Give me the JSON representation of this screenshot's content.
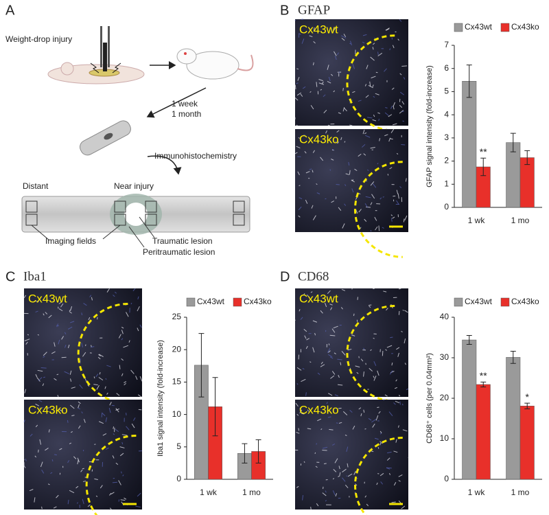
{
  "figure": {
    "A": {
      "label": "A",
      "injury": "Weight-drop injury",
      "time": [
        "1 week",
        "1 month"
      ],
      "method": "Immunohistochemistry",
      "distant": "Distant",
      "near": "Near injury",
      "fields": "Imaging fields",
      "traumatic": "Traumatic lesion",
      "peritraumatic": "Peritraumatic lesion"
    },
    "B": {
      "label": "B",
      "title": "GFAP",
      "images": [
        "Cx43wt",
        "Cx43ko"
      ]
    },
    "C": {
      "label": "C",
      "title": "Iba1",
      "images": [
        "Cx43wt",
        "Cx43ko"
      ]
    },
    "D": {
      "label": "D",
      "title": "CD68",
      "images": [
        "Cx43wt",
        "Cx43ko"
      ]
    }
  },
  "chart_data": [
    {
      "type": "bar",
      "ylabel": "GFAP signal intensity (fold-increase)",
      "categories": [
        "1 wk",
        "1 mo"
      ],
      "series": [
        {
          "name": "Cx43wt",
          "color": "#9a9a9a",
          "values": [
            5.45,
            2.8
          ],
          "errors": [
            0.7,
            0.4
          ]
        },
        {
          "name": "Cx43ko",
          "color": "#e8302a",
          "values": [
            1.75,
            2.15
          ],
          "errors": [
            0.38,
            0.3
          ],
          "significance": [
            "**",
            null
          ]
        }
      ],
      "ylim": [
        0,
        7
      ],
      "yticks": [
        0,
        1,
        2,
        3,
        4,
        5,
        6,
        7
      ],
      "grid": false
    },
    {
      "type": "bar",
      "ylabel": "Iba1 signal intensity (fold-increase)",
      "categories": [
        "1 wk",
        "1 mo"
      ],
      "series": [
        {
          "name": "Cx43wt",
          "color": "#9a9a9a",
          "values": [
            17.6,
            4.0
          ],
          "errors": [
            4.9,
            1.5
          ]
        },
        {
          "name": "Cx43ko",
          "color": "#e8302a",
          "values": [
            11.2,
            4.3
          ],
          "errors": [
            4.5,
            1.8
          ]
        }
      ],
      "ylim": [
        0,
        25
      ],
      "yticks": [
        0,
        5,
        10,
        15,
        20,
        25
      ],
      "grid": false
    },
    {
      "type": "bar",
      "ylabel": "CD68⁺ cells (per 0.04mm²)",
      "categories": [
        "1 wk",
        "1 mo"
      ],
      "series": [
        {
          "name": "Cx43wt",
          "color": "#9a9a9a",
          "values": [
            34.4,
            30.1
          ],
          "errors": [
            1.1,
            1.5
          ]
        },
        {
          "name": "Cx43ko",
          "color": "#e8302a",
          "values": [
            23.4,
            18.1
          ],
          "errors": [
            0.6,
            0.7
          ],
          "significance": [
            "**",
            "*"
          ]
        }
      ],
      "ylim": [
        0,
        40
      ],
      "yticks": [
        0,
        10,
        20,
        30,
        40
      ],
      "grid": false
    }
  ]
}
